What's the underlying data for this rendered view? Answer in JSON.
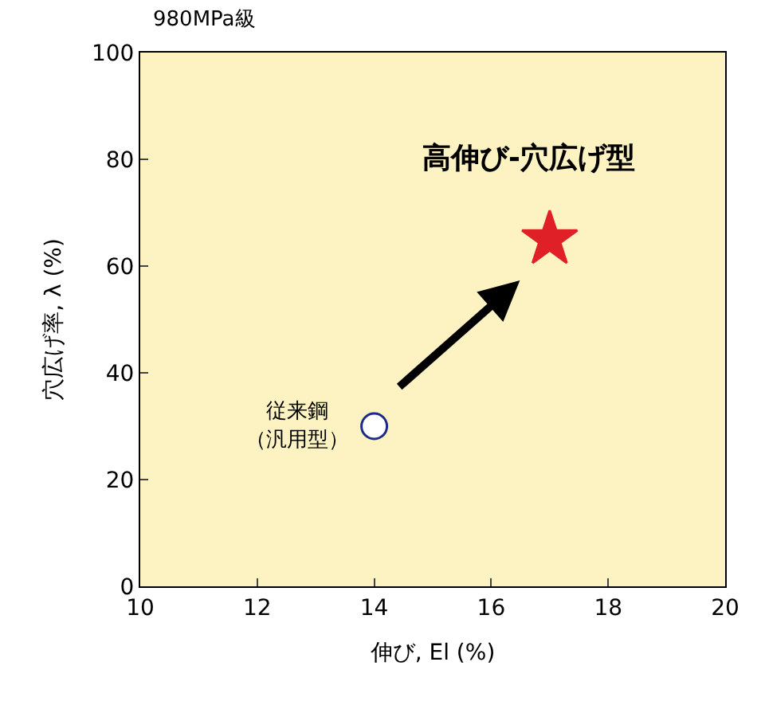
{
  "chart_data": {
    "type": "scatter",
    "title": "980MPa級",
    "xlabel": "伸び, El (%)",
    "ylabel": "穴広げ率, λ (%)",
    "xlim": [
      10,
      20
    ],
    "xticks": [
      10,
      12,
      14,
      16,
      18,
      20
    ],
    "ylim": [
      0,
      100
    ],
    "yticks": [
      0,
      20,
      40,
      60,
      80,
      100
    ],
    "grid": false,
    "series": [
      {
        "color": "#1c2a8c",
        "marker": "circle",
        "x": [
          14
        ],
        "values": [
          30
        ]
      },
      {
        "color": "#e02027",
        "marker": "star",
        "x": [
          17
        ],
        "values": [
          65
        ]
      }
    ],
    "annotations": [
      {
        "text": "従来鋼",
        "x": 14,
        "y": 30
      },
      {
        "text": "（汎用型）",
        "x": 14,
        "y": 30
      },
      "高伸び-穴広げ型"
    ]
  }
}
